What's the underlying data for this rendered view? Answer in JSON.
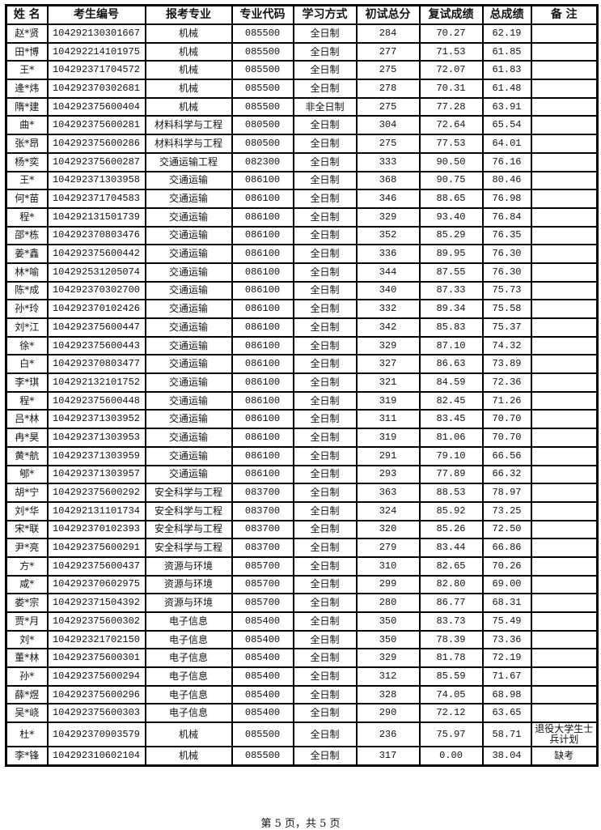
{
  "headers": [
    "姓 名",
    "考生编号",
    "报考专业",
    "专业代码",
    "学习方式",
    "初试总分",
    "复试成绩",
    "总成绩",
    "备 注"
  ],
  "rows": [
    [
      "赵*贤",
      "104292130301667",
      "机械",
      "085500",
      "全日制",
      "284",
      "70.27",
      "62.19",
      ""
    ],
    [
      "田*博",
      "104292214101975",
      "机械",
      "085500",
      "全日制",
      "277",
      "71.53",
      "61.85",
      ""
    ],
    [
      "王*",
      "104292371704572",
      "机械",
      "085500",
      "全日制",
      "275",
      "72.07",
      "61.83",
      ""
    ],
    [
      "逄*炜",
      "104292370302681",
      "机械",
      "085500",
      "全日制",
      "278",
      "70.31",
      "61.48",
      ""
    ],
    [
      "隋*建",
      "104292375600404",
      "机械",
      "085500",
      "非全日制",
      "275",
      "77.28",
      "63.91",
      ""
    ],
    [
      "曲*",
      "104292375600281",
      "材料科学与工程",
      "080500",
      "全日制",
      "304",
      "72.64",
      "65.54",
      ""
    ],
    [
      "张*昂",
      "104292375600286",
      "材料科学与工程",
      "080500",
      "全日制",
      "275",
      "77.53",
      "64.01",
      ""
    ],
    [
      "杨*奕",
      "104292375600287",
      "交通运输工程",
      "082300",
      "全日制",
      "333",
      "90.50",
      "76.16",
      ""
    ],
    [
      "王*",
      "104292371303958",
      "交通运输",
      "086100",
      "全日制",
      "368",
      "90.75",
      "80.46",
      ""
    ],
    [
      "何*苗",
      "104292371704583",
      "交通运输",
      "086100",
      "全日制",
      "346",
      "88.65",
      "76.98",
      ""
    ],
    [
      "程*",
      "104292131501739",
      "交通运输",
      "086100",
      "全日制",
      "329",
      "93.40",
      "76.84",
      ""
    ],
    [
      "邵*栋",
      "104292370803476",
      "交通运输",
      "086100",
      "全日制",
      "352",
      "85.29",
      "76.35",
      ""
    ],
    [
      "姜*鑫",
      "104292375600442",
      "交通运输",
      "086100",
      "全日制",
      "336",
      "89.95",
      "76.30",
      ""
    ],
    [
      "林*喻",
      "104292531205074",
      "交通运输",
      "086100",
      "全日制",
      "344",
      "87.55",
      "76.30",
      ""
    ],
    [
      "陈*成",
      "104292370302700",
      "交通运输",
      "086100",
      "全日制",
      "340",
      "87.33",
      "75.73",
      ""
    ],
    [
      "孙*玲",
      "104292370102426",
      "交通运输",
      "086100",
      "全日制",
      "332",
      "89.34",
      "75.58",
      ""
    ],
    [
      "刘*江",
      "104292375600447",
      "交通运输",
      "086100",
      "全日制",
      "342",
      "85.83",
      "75.37",
      ""
    ],
    [
      "徐*",
      "104292375600443",
      "交通运输",
      "086100",
      "全日制",
      "329",
      "87.10",
      "74.32",
      ""
    ],
    [
      "白*",
      "104292370803477",
      "交通运输",
      "086100",
      "全日制",
      "327",
      "86.63",
      "73.89",
      ""
    ],
    [
      "李*琪",
      "104292132101752",
      "交通运输",
      "086100",
      "全日制",
      "321",
      "84.59",
      "72.36",
      ""
    ],
    [
      "程*",
      "104292375600448",
      "交通运输",
      "086100",
      "全日制",
      "319",
      "82.45",
      "71.26",
      ""
    ],
    [
      "吕*林",
      "104292371303952",
      "交通运输",
      "086100",
      "全日制",
      "311",
      "83.45",
      "70.70",
      ""
    ],
    [
      "冉*昊",
      "104292371303953",
      "交通运输",
      "086100",
      "全日制",
      "319",
      "81.06",
      "70.70",
      ""
    ],
    [
      "黄*航",
      "104292371303959",
      "交通运输",
      "086100",
      "全日制",
      "291",
      "79.10",
      "66.56",
      ""
    ],
    [
      "郇*",
      "104292371303957",
      "交通运输",
      "086100",
      "全日制",
      "293",
      "77.89",
      "66.32",
      ""
    ],
    [
      "胡*宁",
      "104292375600292",
      "安全科学与工程",
      "083700",
      "全日制",
      "363",
      "88.53",
      "78.97",
      ""
    ],
    [
      "刘*华",
      "104292131101734",
      "安全科学与工程",
      "083700",
      "全日制",
      "324",
      "85.92",
      "73.25",
      ""
    ],
    [
      "宋*联",
      "104292370102393",
      "安全科学与工程",
      "083700",
      "全日制",
      "320",
      "85.26",
      "72.50",
      ""
    ],
    [
      "尹*亮",
      "104292375600291",
      "安全科学与工程",
      "083700",
      "全日制",
      "279",
      "83.44",
      "66.86",
      ""
    ],
    [
      "方*",
      "104292375600437",
      "资源与环境",
      "085700",
      "全日制",
      "310",
      "82.65",
      "70.26",
      ""
    ],
    [
      "咸*",
      "104292370602975",
      "资源与环境",
      "085700",
      "全日制",
      "299",
      "82.80",
      "69.00",
      ""
    ],
    [
      "娄*宗",
      "104292371504392",
      "资源与环境",
      "085700",
      "全日制",
      "280",
      "86.77",
      "68.31",
      ""
    ],
    [
      "贾*月",
      "104292375600302",
      "电子信息",
      "085400",
      "全日制",
      "350",
      "83.73",
      "75.49",
      ""
    ],
    [
      "刘*",
      "104292321702150",
      "电子信息",
      "085400",
      "全日制",
      "350",
      "78.39",
      "73.36",
      ""
    ],
    [
      "董*林",
      "104292375600301",
      "电子信息",
      "085400",
      "全日制",
      "329",
      "81.78",
      "72.19",
      ""
    ],
    [
      "孙*",
      "104292375600294",
      "电子信息",
      "085400",
      "全日制",
      "312",
      "85.59",
      "71.67",
      ""
    ],
    [
      "薛*煜",
      "104292375600296",
      "电子信息",
      "085400",
      "全日制",
      "328",
      "74.05",
      "68.98",
      ""
    ],
    [
      "吴*峣",
      "104292375600303",
      "电子信息",
      "085400",
      "全日制",
      "290",
      "72.12",
      "63.65",
      ""
    ],
    [
      "杜*",
      "104292370903579",
      "机械",
      "085500",
      "全日制",
      "236",
      "75.97",
      "58.71",
      "退役大学生士兵计划"
    ],
    [
      "李*锋",
      "104292310602104",
      "机械",
      "085500",
      "全日制",
      "317",
      "0.00",
      "38.04",
      "缺考"
    ]
  ],
  "footer": "第 5 页，共 5 页"
}
